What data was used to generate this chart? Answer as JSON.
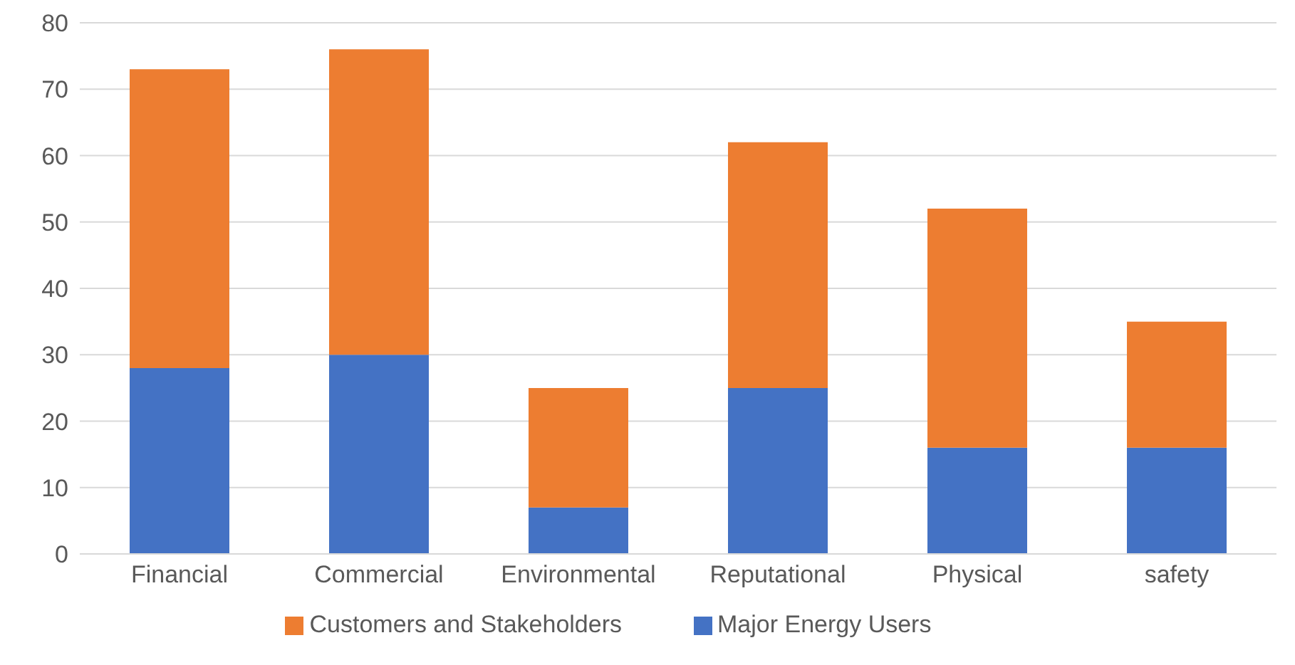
{
  "chart_data": {
    "type": "bar",
    "stacked": true,
    "categories": [
      "Financial",
      "Commercial",
      "Environmental",
      "Reputational",
      "Physical",
      "safety"
    ],
    "series": [
      {
        "name": "Major Energy Users",
        "color": "#4472c4",
        "values": [
          28,
          30,
          7,
          25,
          16,
          16
        ]
      },
      {
        "name": "Customers and Stakeholders",
        "color": "#ed7d31",
        "values": [
          45,
          46,
          18,
          37,
          36,
          19
        ]
      }
    ],
    "ylim": [
      0,
      80
    ],
    "yticks": [
      0,
      10,
      20,
      30,
      40,
      50,
      60,
      70,
      80
    ],
    "grid": "y",
    "legend": "bottom"
  }
}
